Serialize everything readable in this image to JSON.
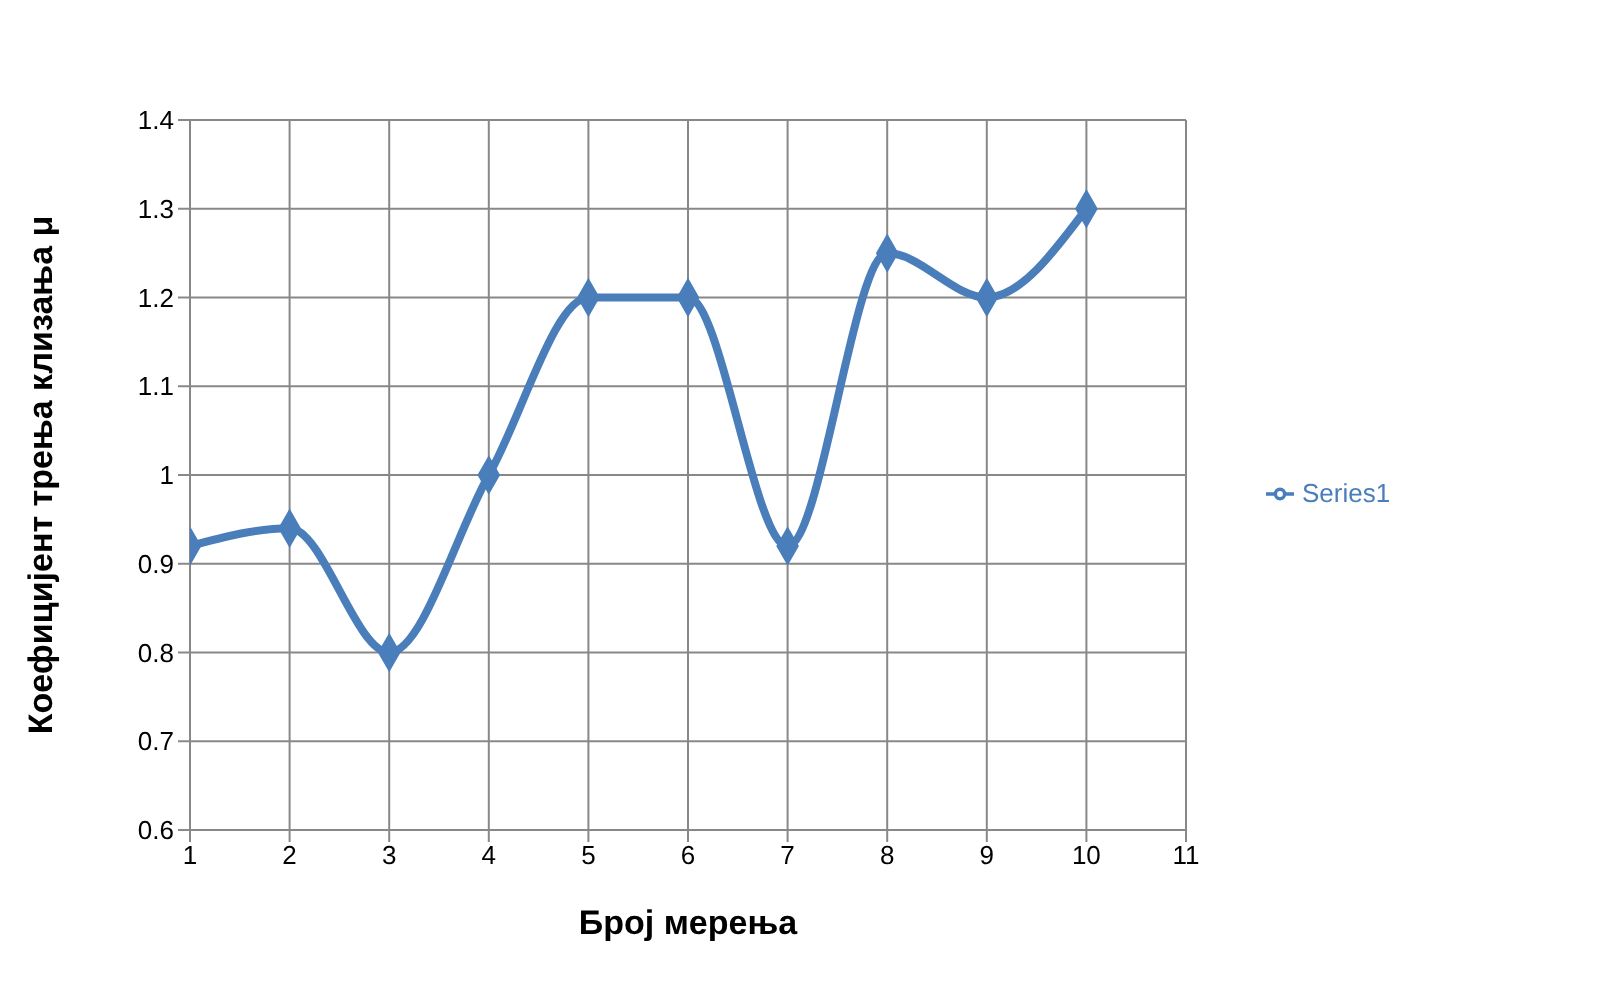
{
  "chart_data": {
    "type": "line",
    "xlabel": "Број мерења",
    "ylabel": "Коефицијент трења клизања μ",
    "x": [
      1,
      2,
      3,
      4,
      5,
      6,
      7,
      8,
      9,
      10
    ],
    "series": [
      {
        "name": "Series1",
        "color": "#4a7ebb",
        "values": [
          0.92,
          0.94,
          0.8,
          1.0,
          1.2,
          1.2,
          0.92,
          1.25,
          1.2,
          1.3
        ]
      }
    ],
    "xlim": [
      1,
      11
    ],
    "xticks": [
      1,
      2,
      3,
      4,
      5,
      6,
      7,
      8,
      9,
      10,
      11
    ],
    "ylim": [
      0.6,
      1.4
    ],
    "yticks": [
      0.6,
      0.7,
      0.8,
      0.9,
      1,
      1.1,
      1.2,
      1.3,
      1.4
    ],
    "grid": true,
    "legend": "right",
    "marker": "diamond",
    "line_style": "solid"
  }
}
